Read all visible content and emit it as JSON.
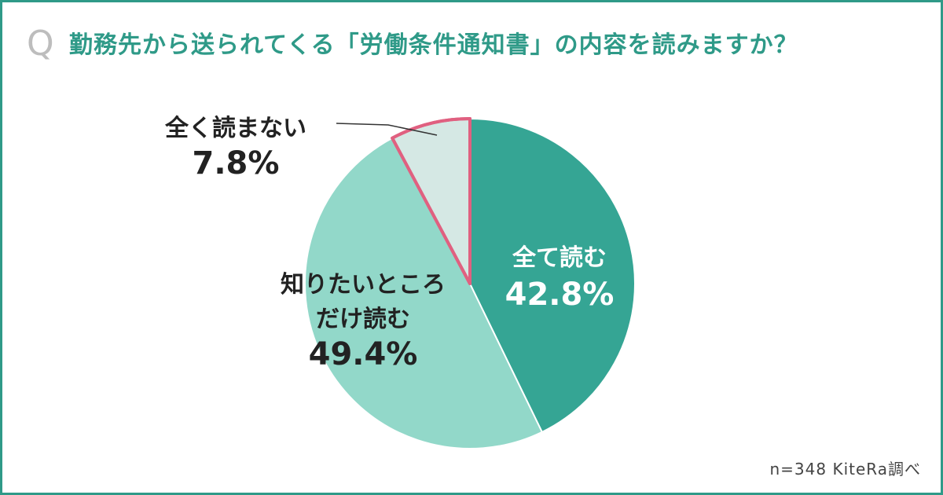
{
  "question": {
    "prefix": "Q",
    "text": "勤務先から送られてくる「労働条件通知書」の内容を読みますか？"
  },
  "chart_data": {
    "type": "pie",
    "title": "勤務先から送られてくる「労働条件通知書」の内容を読みますか？",
    "start_angle_deg": 0,
    "direction": "clockwise",
    "slices": [
      {
        "label_lines": [
          "全て読む"
        ],
        "value": 42.8,
        "value_label": "42.8%",
        "color": "#35a594",
        "stroke": "#ffffff",
        "text_color": "#ffffff"
      },
      {
        "label_lines": [
          "知りたいところ",
          "だけ読む"
        ],
        "value": 49.4,
        "value_label": "49.4%",
        "color": "#92d8c9",
        "stroke": "#ffffff",
        "text_color": "#222222"
      },
      {
        "label_lines": [
          "全く読まない"
        ],
        "value": 7.8,
        "value_label": "7.8%",
        "color": "#d5e8e4",
        "stroke": "#e06080",
        "text_color": "#222222"
      }
    ],
    "legend": "none"
  },
  "footer": {
    "note": "n=348  KiteRa調べ"
  }
}
